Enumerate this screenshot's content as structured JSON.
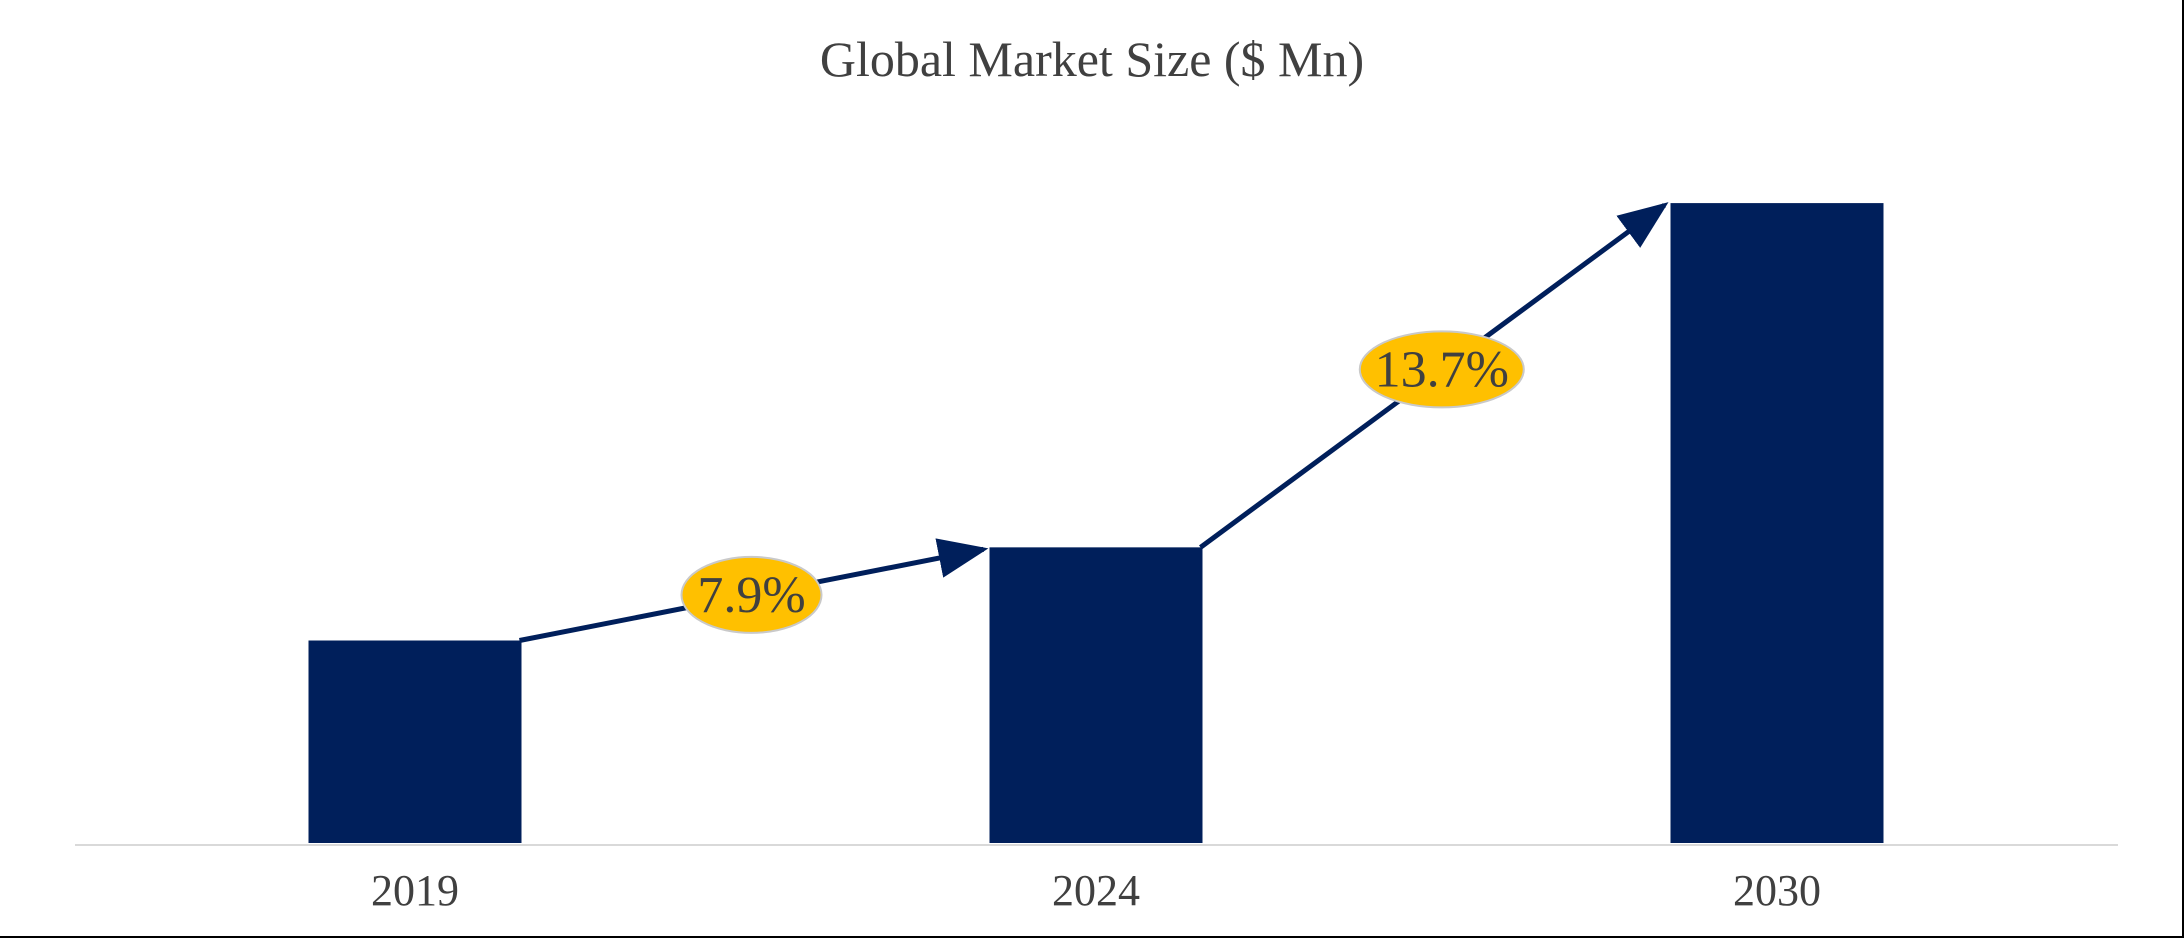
{
  "chart_data": {
    "type": "bar",
    "title": "Global Market Size ($ Mn)",
    "xlabel": "",
    "ylabel": "",
    "categories": [
      "2019",
      "2024",
      "2030"
    ],
    "values": [
      100,
      146,
      316
    ],
    "ylim": [
      0,
      320
    ],
    "grid": false,
    "legend": "none",
    "annotations": [
      {
        "label": "7.9%",
        "from": "2019",
        "to": "2024"
      },
      {
        "label": "13.7%",
        "from": "2024",
        "to": "2030"
      }
    ]
  },
  "colors": {
    "bar": "#001f5b",
    "arrow": "#001f5b",
    "badge_fill": "#ffc000",
    "badge_stroke": "#c9c9c9",
    "axis": "#d9d9d9"
  }
}
